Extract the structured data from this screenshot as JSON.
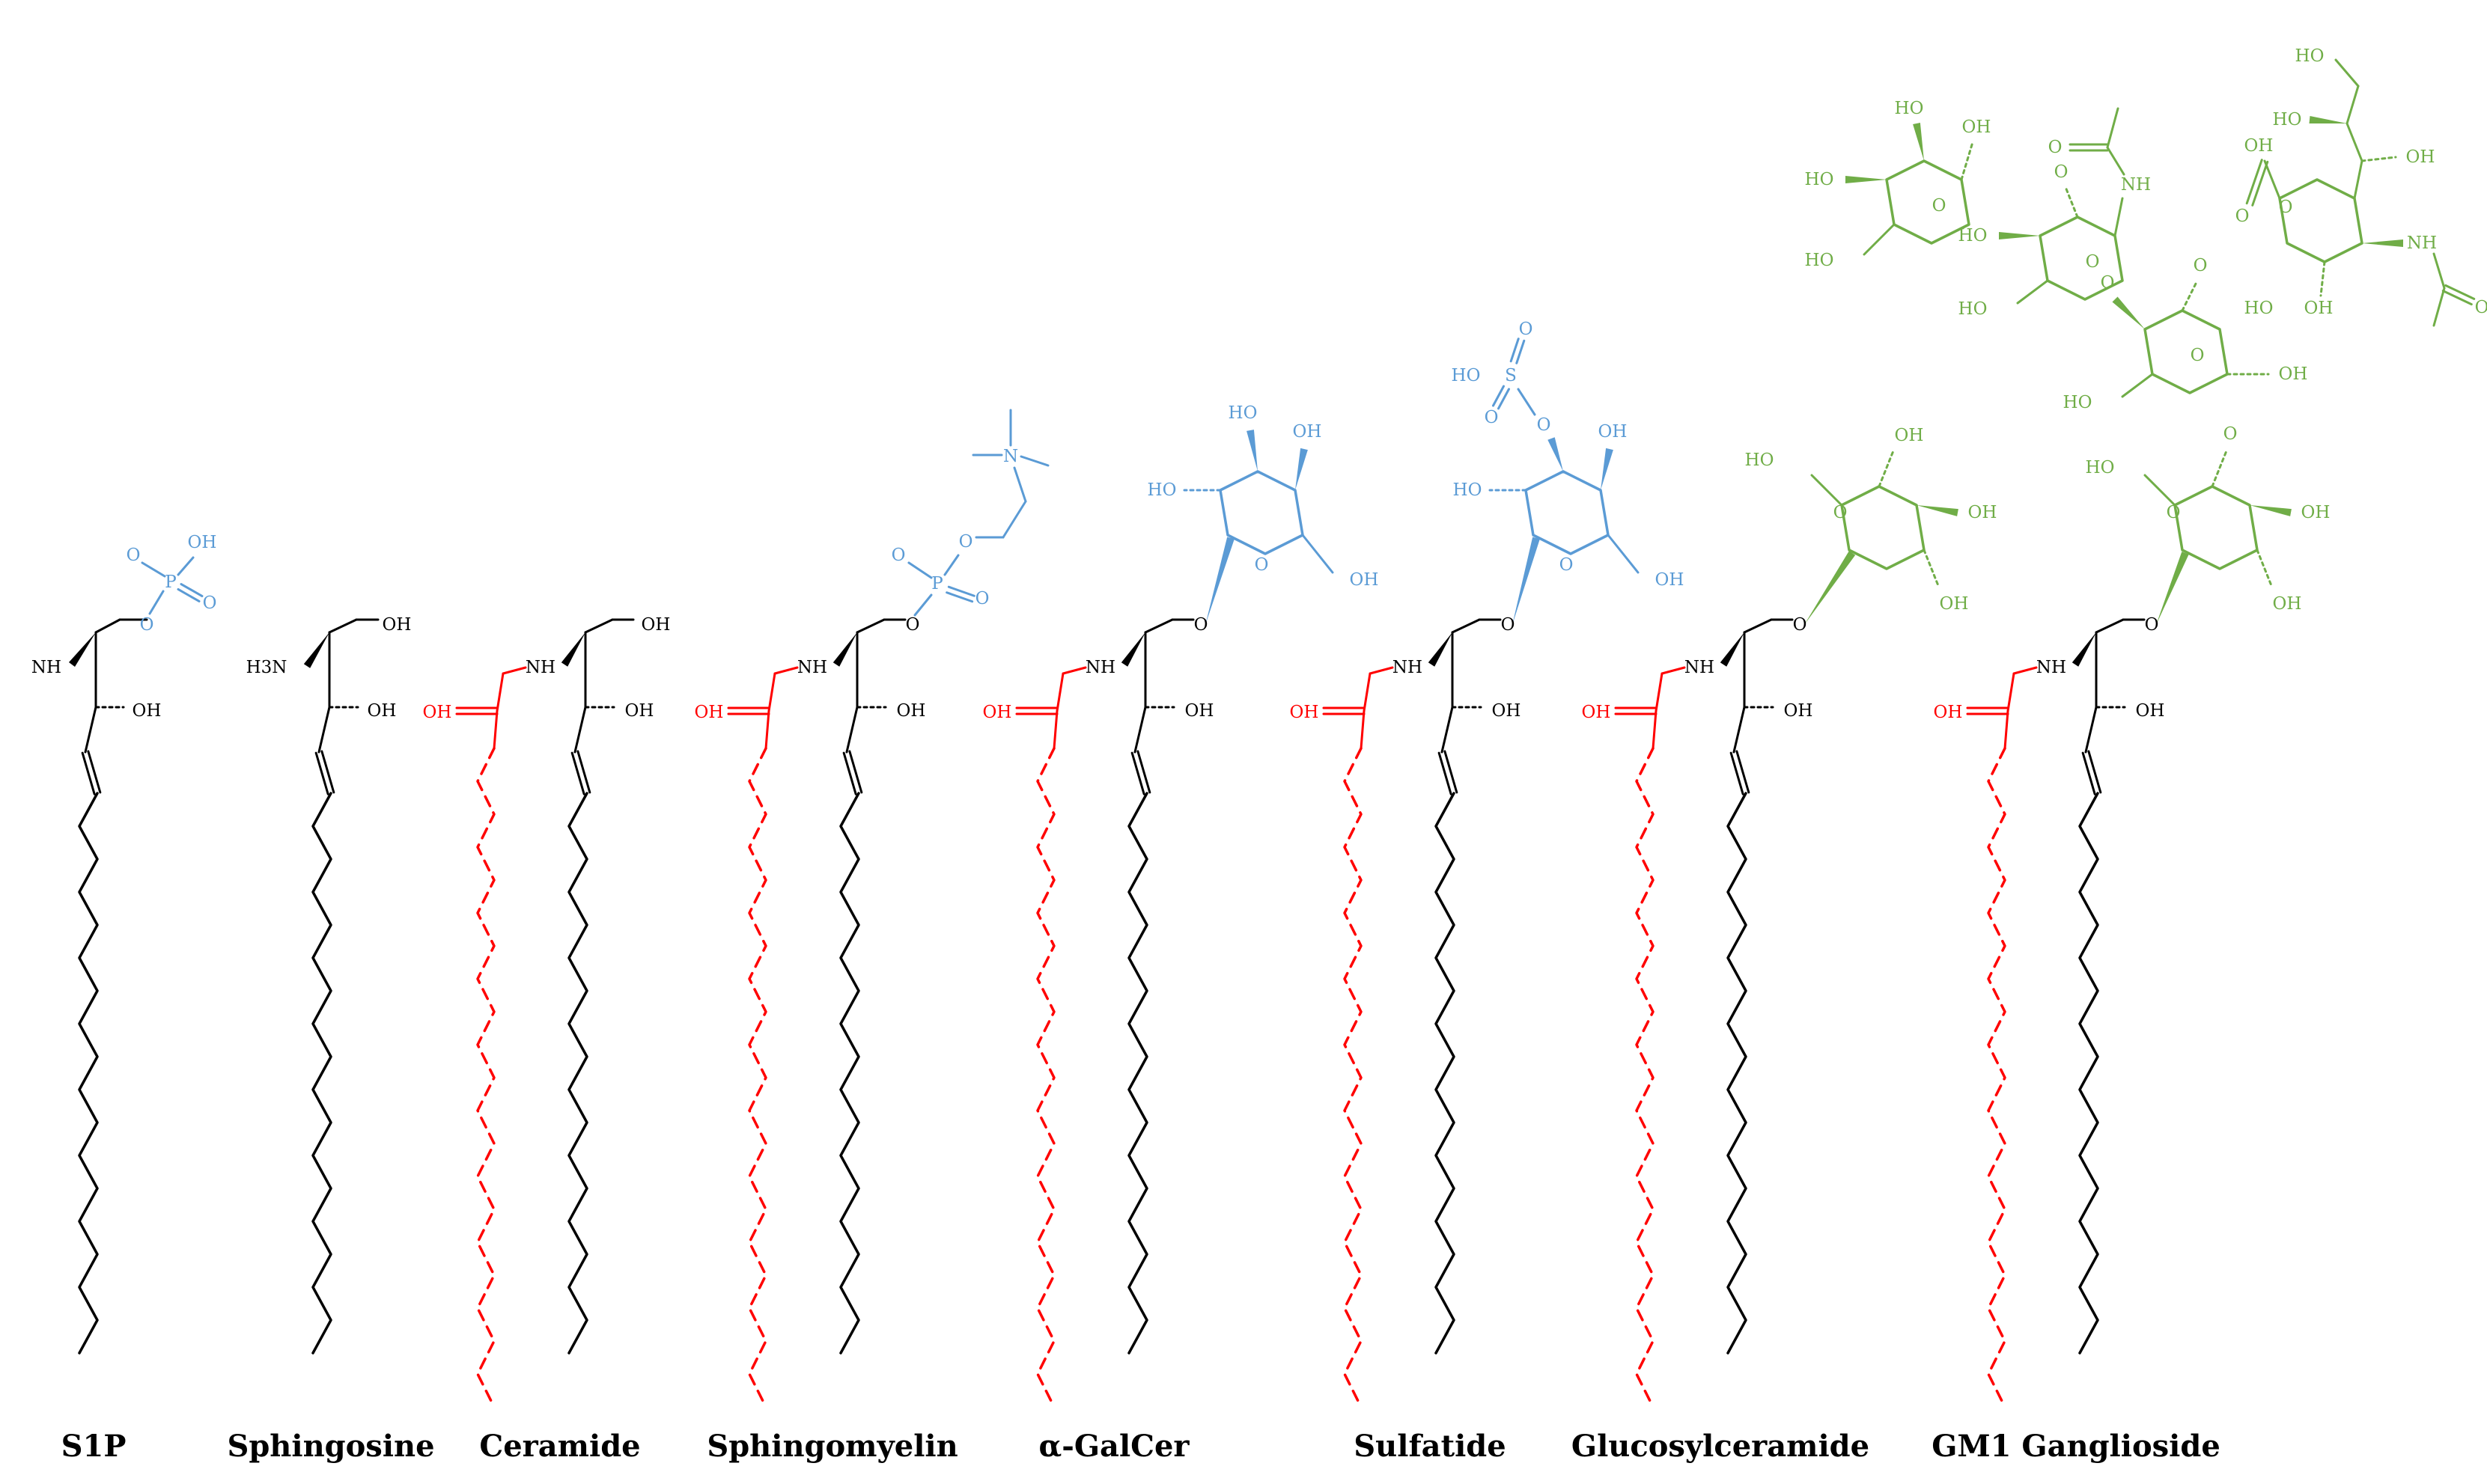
{
  "colors": {
    "sphingoid": "#000000",
    "fatty_acid": "#ff0000",
    "headgroup_blue": "#5b9bd5",
    "headgroup_green": "#70ad47"
  },
  "captions": {
    "s1p": "S1P",
    "sphingosine": "Sphingosine",
    "ceramide": "Ceramide",
    "sphingomyelin": "Sphingomyelin",
    "galcer": "α-GalCer",
    "sulfatide": "Sulfatide",
    "glucosylceramide": "Glucosylceramide",
    "gm1": "GM1 Ganglioside"
  },
  "atoms": {
    "nh": "NH",
    "h3n": "H3N",
    "plus": "+",
    "minus": "-",
    "oh": "OH",
    "ho": "HO",
    "o": "O",
    "p": "P",
    "s": "S",
    "n": "N",
    "n_plus": "N+"
  }
}
